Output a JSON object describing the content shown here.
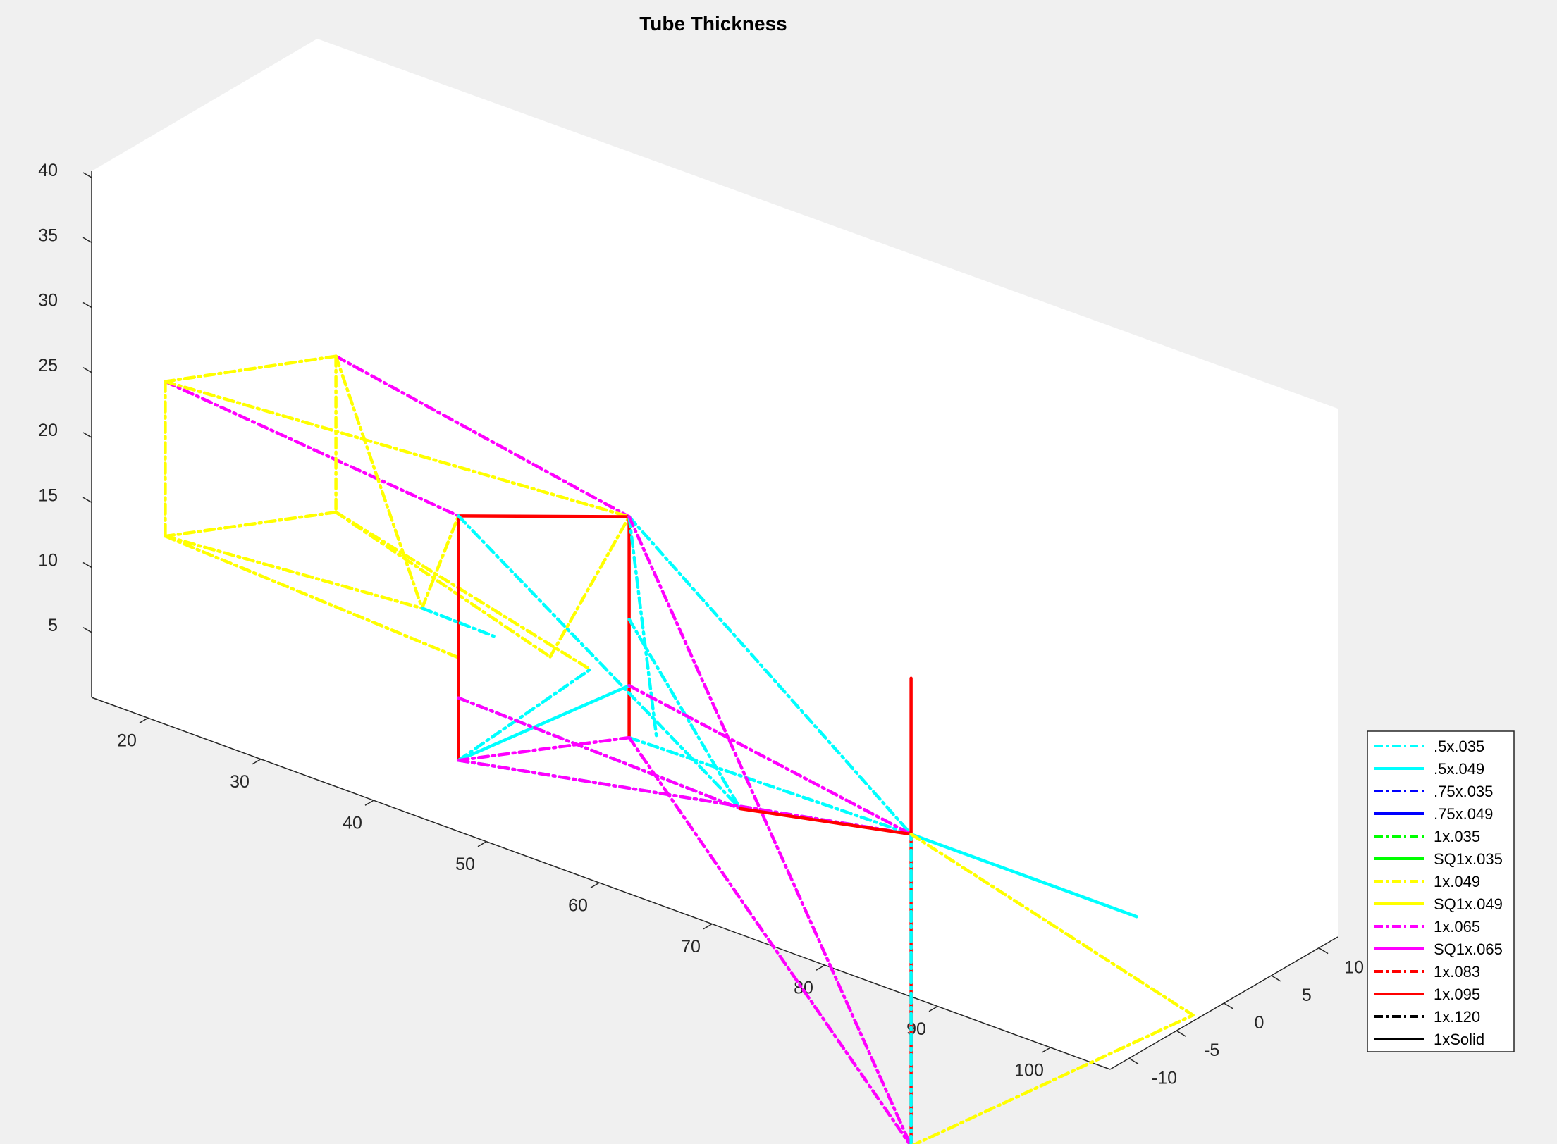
{
  "chart_data": {
    "type": "line",
    "title": "Tube Thickness",
    "xlabel": "",
    "ylabel": "",
    "zlabel": "",
    "x_ticks": [
      "20",
      "30",
      "40",
      "50",
      "60",
      "70",
      "80",
      "90",
      "100"
    ],
    "y_ticks": [
      "-10",
      "-5",
      "0",
      "5",
      "10"
    ],
    "z_ticks": [
      "5",
      "10",
      "15",
      "20",
      "25",
      "30",
      "35",
      "40"
    ],
    "xlim": [
      15,
      105
    ],
    "ylim": [
      -12,
      12
    ],
    "zlim": [
      0,
      42
    ],
    "grid": false,
    "box": true,
    "legend_position": "bottom-right",
    "legend": [
      {
        "label": ".5x.035",
        "color": "#00ffff",
        "style": "dashdot"
      },
      {
        "label": ".5x.049",
        "color": "#00ffff",
        "style": "solid"
      },
      {
        "label": ".75x.035",
        "color": "#0000ff",
        "style": "dashdot"
      },
      {
        "label": ".75x.049",
        "color": "#0000ff",
        "style": "solid"
      },
      {
        "label": "1x.035",
        "color": "#00ff00",
        "style": "dashdot"
      },
      {
        "label": "SQ1x.035",
        "color": "#00ff00",
        "style": "solid"
      },
      {
        "label": "1x.049",
        "color": "#ffff00",
        "style": "dashdot"
      },
      {
        "label": "SQ1x.049",
        "color": "#ffff00",
        "style": "solid"
      },
      {
        "label": "1x.065",
        "color": "#ff00ff",
        "style": "dashdot"
      },
      {
        "label": "SQ1x.065",
        "color": "#ff00ff",
        "style": "solid"
      },
      {
        "label": "1x.083",
        "color": "#ff0000",
        "style": "dashdot"
      },
      {
        "label": "1x.095",
        "color": "#ff0000",
        "style": "solid"
      },
      {
        "label": "1x.120",
        "color": "#000000",
        "style": "dashdot"
      },
      {
        "label": "1xSolid",
        "color": "#000000",
        "style": "solid"
      }
    ],
    "segments": [
      {
        "style": 8,
        "from": [
          19,
          9,
          18.6
        ],
        "to": [
          45,
          9,
          14.5
        ]
      },
      {
        "style": 8,
        "from": [
          19,
          -9,
          24.3
        ],
        "to": [
          45,
          -9,
          22.2
        ]
      },
      {
        "style": 6,
        "from": [
          19,
          9,
          18.6
        ],
        "to": [
          19,
          -9,
          24.3
        ]
      },
      {
        "style": 6,
        "from": [
          19,
          9,
          18.6
        ],
        "to": [
          19,
          9,
          6.6
        ]
      },
      {
        "style": 6,
        "from": [
          19,
          -9,
          24.3
        ],
        "to": [
          19,
          -9,
          12.4
        ]
      },
      {
        "style": 6,
        "from": [
          19,
          9,
          6.6
        ],
        "to": [
          19,
          -9,
          12.4
        ]
      },
      {
        "style": 6,
        "from": [
          19,
          9,
          18.6
        ],
        "to": [
          30,
          5,
          4.4
        ]
      },
      {
        "style": 6,
        "from": [
          19,
          -9,
          24.3
        ],
        "to": [
          45,
          9,
          14.5
        ]
      },
      {
        "style": 6,
        "from": [
          19,
          9,
          6.6
        ],
        "to": [
          45,
          5,
          4.4
        ]
      },
      {
        "style": 6,
        "from": [
          19,
          -9,
          12.4
        ],
        "to": [
          45,
          -9,
          11.3
        ]
      },
      {
        "style": 6,
        "from": [
          19,
          -9,
          12.4
        ],
        "to": [
          30,
          5,
          4.4
        ]
      },
      {
        "style": 6,
        "from": [
          30,
          5,
          4.4
        ],
        "to": [
          45,
          -9,
          22.2
        ]
      },
      {
        "style": 6,
        "from": [
          19,
          9,
          6.6
        ],
        "to": [
          38,
          9,
          1.5
        ]
      },
      {
        "style": 6,
        "from": [
          38,
          9,
          1.5
        ],
        "to": [
          45,
          9,
          14.5
        ]
      },
      {
        "style": 11,
        "from": [
          45,
          9,
          14.5
        ],
        "to": [
          45,
          -9,
          22.2
        ]
      },
      {
        "style": 11,
        "from": [
          45,
          9,
          14.5
        ],
        "to": [
          45,
          9,
          1.5
        ]
      },
      {
        "style": 11,
        "from": [
          45,
          -9,
          22.2
        ],
        "to": [
          45,
          -9,
          8.2
        ]
      },
      {
        "style": 11,
        "from": [
          45,
          -9,
          8.2
        ],
        "to": [
          45,
          -9,
          3.4
        ]
      },
      {
        "style": 11,
        "from": [
          45,
          9,
          1.5
        ],
        "to": [
          45,
          9,
          -2.5
        ]
      },
      {
        "style": 0,
        "from": [
          45,
          -9,
          22.2
        ],
        "to": [
          70,
          -9,
          7.6
        ]
      },
      {
        "style": 0,
        "from": [
          45,
          9,
          14.5
        ],
        "to": [
          55,
          0,
          4.5
        ]
      },
      {
        "style": 0,
        "from": [
          45,
          9,
          14.5
        ],
        "to": [
          70,
          9,
          -2
        ]
      },
      {
        "style": 0,
        "from": [
          45,
          -9,
          3.4
        ],
        "to": [
          45,
          5,
          4.5
        ]
      },
      {
        "style": 0,
        "from": [
          45,
          -9,
          8.2
        ],
        "to": [
          70,
          -9,
          7.6
        ]
      },
      {
        "style": 0,
        "from": [
          45,
          9,
          6.6
        ],
        "to": [
          70,
          -9,
          7.6
        ]
      },
      {
        "style": 1,
        "from": [
          45,
          9,
          1.5
        ],
        "to": [
          45,
          -9,
          3.4
        ]
      },
      {
        "style": 0,
        "from": [
          30,
          5,
          4.4
        ],
        "to": [
          33,
          9,
          1.5
        ]
      },
      {
        "style": 0,
        "from": [
          45,
          -9,
          3.4
        ],
        "to": [
          70,
          9,
          -2
        ]
      },
      {
        "style": 0,
        "from": [
          45,
          9,
          -2.5
        ],
        "to": [
          70,
          9,
          -2
        ]
      },
      {
        "style": 8,
        "from": [
          45,
          -9,
          8.2
        ],
        "to": [
          70,
          -9,
          7.6
        ]
      },
      {
        "style": 8,
        "from": [
          45,
          -9,
          3.4
        ],
        "to": [
          45,
          9,
          -2.5
        ]
      },
      {
        "style": 8,
        "from": [
          45,
          -9,
          3.4
        ],
        "to": [
          70,
          9,
          -2
        ]
      },
      {
        "style": 8,
        "from": [
          45,
          9,
          14.5
        ],
        "to": [
          70,
          9,
          -26
        ]
      },
      {
        "style": 8,
        "from": [
          45,
          9,
          -2.5
        ],
        "to": [
          70,
          9,
          -26
        ]
      },
      {
        "style": 8,
        "from": [
          45,
          9,
          1.5
        ],
        "to": [
          70,
          9,
          -2
        ]
      },
      {
        "style": 11,
        "from": [
          70,
          9,
          -2
        ],
        "to": [
          70,
          9,
          -26
        ]
      },
      {
        "style": 11,
        "from": [
          70,
          9,
          -2
        ],
        "to": [
          70,
          -9,
          7.6
        ]
      },
      {
        "style": 11,
        "from": [
          70,
          9,
          -2
        ],
        "to": [
          70,
          9,
          10
        ]
      },
      {
        "style": 1,
        "from": [
          70,
          9,
          -2
        ],
        "to": [
          90,
          9,
          -2
        ]
      },
      {
        "style": 0,
        "from": [
          70,
          9,
          -26
        ],
        "to": [
          70,
          9,
          -2
        ]
      },
      {
        "style": 6,
        "from": [
          70,
          9,
          -26
        ],
        "to": [
          95,
          9,
          -8
        ]
      },
      {
        "style": 6,
        "from": [
          70,
          9,
          -26
        ],
        "to": [
          95,
          -9,
          -11
        ]
      },
      {
        "style": 6,
        "from": [
          70,
          9,
          -2
        ],
        "to": [
          95,
          9,
          -8
        ]
      }
    ]
  }
}
